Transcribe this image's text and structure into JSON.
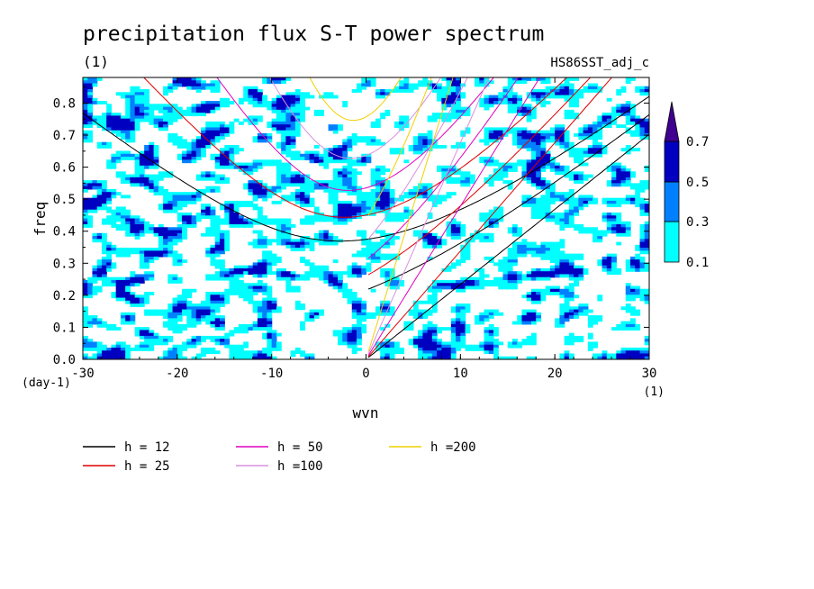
{
  "chart_data": {
    "type": "heatmap",
    "title": "precipitation flux S-T power spectrum",
    "subtitle_left": "(1)",
    "subtitle_right": "HS86SST_adj_c",
    "xlabel": "wvn",
    "ylabel": "freq",
    "x_unit": "(1)",
    "y_unit": "(day-1)",
    "xlim": [
      -30,
      30
    ],
    "ylim": [
      0,
      0.88
    ],
    "xticks": [
      -30,
      -20,
      -10,
      0,
      10,
      20,
      30
    ],
    "xtick_labels": [
      "-30",
      "-20",
      "-10",
      "0",
      "10",
      "20",
      "30"
    ],
    "yticks": [
      0,
      0.1,
      0.2,
      0.3,
      0.4,
      0.5,
      0.6,
      0.7,
      0.8
    ],
    "ytick_labels": [
      "0.0",
      "0.1",
      "0.2",
      "0.3",
      "0.4",
      "0.5",
      "0.6",
      "0.7",
      "0.8"
    ],
    "colorbar": {
      "levels": [
        "0.1",
        "0.3",
        "0.5",
        "0.7"
      ],
      "colors": [
        "#00ffff",
        "#0080ff",
        "#0000c0",
        "#400090"
      ],
      "extend": "max"
    },
    "dispersion_curves": [
      {
        "name": "h = 12",
        "h": 12,
        "color": "#000000"
      },
      {
        "name": "h = 25",
        "h": 25,
        "color": "#e00000"
      },
      {
        "name": "h = 50",
        "h": 50,
        "color": "#e000c0"
      },
      {
        "name": "h =100",
        "h": 100,
        "color": "#d890e0"
      },
      {
        "name": "h =200",
        "h": 200,
        "color": "#f0d000"
      }
    ],
    "legend_position": "bottom-left"
  }
}
